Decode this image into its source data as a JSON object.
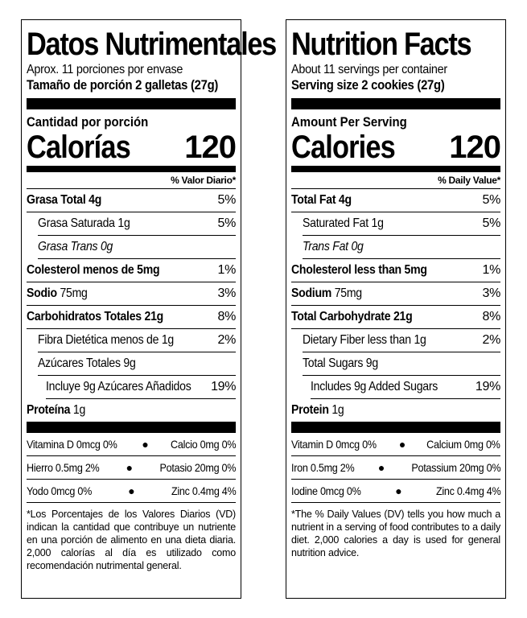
{
  "spanish": {
    "title": "Datos Nutrimentales",
    "servings_per_container": "Aprox. 11 porciones por envase",
    "serving_size": "Tamaño de porción 2 galletas (27g)",
    "amount_per_serving": "Cantidad por porción",
    "calories_label": "Calorías",
    "calories_value": "120",
    "dv_header": "% Valor Diario*",
    "nutrients": [
      {
        "name": "Grasa Total",
        "amount": "4g",
        "dv": "5%"
      },
      {
        "name": "Grasa Saturada",
        "amount": "1g",
        "dv": "5%"
      },
      {
        "name": "Grasa Trans",
        "amount": "0g",
        "dv": ""
      },
      {
        "name": "Colesterol menos de",
        "amount": "5mg",
        "dv": "1%"
      },
      {
        "name": "Sodio",
        "amount": "75mg",
        "dv": "3%"
      },
      {
        "name": "Carbohidratos Totales",
        "amount": "21g",
        "dv": "8%"
      },
      {
        "name": "Fibra Dietética menos de",
        "amount": "1g",
        "dv": "2%"
      },
      {
        "name": "Azúcares Totales",
        "amount": "9g",
        "dv": ""
      },
      {
        "name": "Incluye 9g Azúcares Añadidos",
        "amount": "",
        "dv": "19%"
      },
      {
        "name": "Proteína",
        "amount": "1g",
        "dv": ""
      }
    ],
    "vitamins": [
      {
        "left": "Vitamina D 0mcg 0%",
        "right": "Calcio 0mg 0%"
      },
      {
        "left": "Hierro 0.5mg 2%",
        "right": "Potasio 20mg 0%"
      },
      {
        "left": "Yodo 0mcg 0%",
        "right": "Zinc 0.4mg 4%"
      }
    ],
    "footnote": "*Los Porcentajes de los Valores Diarios (VD) indican la cantidad que contribuye un nutriente en una porción de alimento en una dieta diaria. 2,000 calorías al día es utilizado como recomendación nutrimental general."
  },
  "english": {
    "title": "Nutrition Facts",
    "servings_per_container": "About 11 servings per container",
    "serving_size": "Serving size 2 cookies (27g)",
    "amount_per_serving": "Amount Per Serving",
    "calories_label": "Calories",
    "calories_value": "120",
    "dv_header": "% Daily Value*",
    "nutrients": [
      {
        "name": "Total Fat",
        "amount": "4g",
        "dv": "5%"
      },
      {
        "name": "Saturated Fat",
        "amount": "1g",
        "dv": "5%"
      },
      {
        "name": "Trans Fat",
        "amount": "0g",
        "dv": ""
      },
      {
        "name": "Cholesterol less than",
        "amount": "5mg",
        "dv": "1%"
      },
      {
        "name": "Sodium",
        "amount": "75mg",
        "dv": "3%"
      },
      {
        "name": "Total Carbohydrate",
        "amount": "21g",
        "dv": "8%"
      },
      {
        "name": "Dietary Fiber less than",
        "amount": "1g",
        "dv": "2%"
      },
      {
        "name": "Total Sugars",
        "amount": "9g",
        "dv": ""
      },
      {
        "name": "Includes 9g Added Sugars",
        "amount": "",
        "dv": "19%"
      },
      {
        "name": "Protein",
        "amount": "1g",
        "dv": ""
      }
    ],
    "vitamins": [
      {
        "left": "Vitamin D 0mcg 0%",
        "right": "Calcium 0mg 0%"
      },
      {
        "left": "Iron 0.5mg 2%",
        "right": "Potassium 20mg 0%"
      },
      {
        "left": "Iodine 0mcg 0%",
        "right": "Zinc 0.4mg 4%"
      }
    ],
    "footnote": "*The % Daily Values (DV) tells you how much a nutrient in a serving of food contributes to a daily diet. 2,000 calories a day is used for general nutrition advice."
  }
}
